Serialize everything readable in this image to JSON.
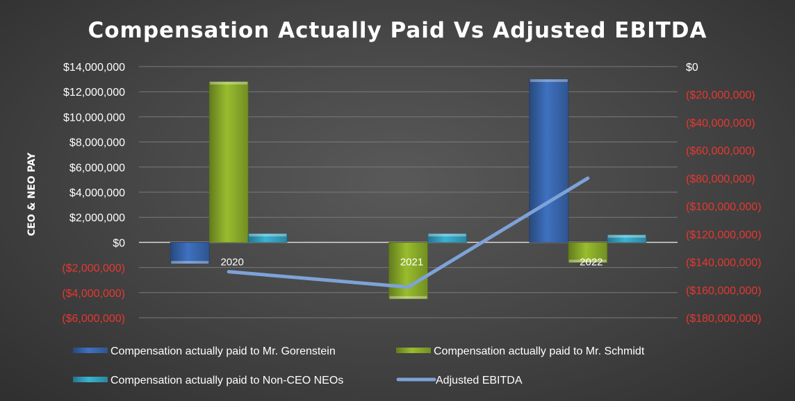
{
  "chart_data": {
    "type": "bar",
    "title": "Compensation Actually Paid Vs Adjusted EBITDA",
    "ylabel": "CEO & NEO PAY",
    "ylabel_right": "",
    "xlabel": "",
    "categories": [
      "2020",
      "2021",
      "2022"
    ],
    "series": [
      {
        "name": "Compensation actually paid to Mr. Gorenstein",
        "kind": "bar",
        "axis": "left",
        "color": "#3e71c0",
        "values": [
          -1700000,
          0,
          13000000
        ]
      },
      {
        "name": "Compensation actually paid to Mr. Schmidt",
        "kind": "bar",
        "axis": "left",
        "color": "#98bd2e",
        "values": [
          12800000,
          -4500000,
          -1600000
        ]
      },
      {
        "name": "Compensation actually paid to Non-CEO NEOs",
        "kind": "bar",
        "axis": "left",
        "color": "#39b3d3",
        "values": [
          700000,
          700000,
          600000
        ]
      },
      {
        "name": "Adjusted EBITDA",
        "kind": "line",
        "axis": "right",
        "color": "#7ea2d8",
        "values": [
          -147000000,
          -158000000,
          -80000000
        ]
      }
    ],
    "ylim": [
      -6000000,
      14000000
    ],
    "ylim_right": [
      -180000000,
      0
    ],
    "yticks_left": [
      {
        "value": 14000000,
        "label": "$14,000,000"
      },
      {
        "value": 12000000,
        "label": "$12,000,000"
      },
      {
        "value": 10000000,
        "label": "$10,000,000"
      },
      {
        "value": 8000000,
        "label": "$8,000,000"
      },
      {
        "value": 6000000,
        "label": "$6,000,000"
      },
      {
        "value": 4000000,
        "label": "$4,000,000"
      },
      {
        "value": 2000000,
        "label": "$2,000,000"
      },
      {
        "value": 0,
        "label": "$0"
      },
      {
        "value": -2000000,
        "label": "($2,000,000)"
      },
      {
        "value": -4000000,
        "label": "($4,000,000)"
      },
      {
        "value": -6000000,
        "label": "($6,000,000)"
      }
    ],
    "yticks_right": [
      {
        "value": 0,
        "label": "$0"
      },
      {
        "value": -20000000,
        "label": "($20,000,000)"
      },
      {
        "value": -40000000,
        "label": "($40,000,000)"
      },
      {
        "value": -60000000,
        "label": "($60,000,000)"
      },
      {
        "value": -80000000,
        "label": "($80,000,000)"
      },
      {
        "value": -100000000,
        "label": "($100,000,000)"
      },
      {
        "value": -120000000,
        "label": "($120,000,000)"
      },
      {
        "value": -140000000,
        "label": "($140,000,000)"
      },
      {
        "value": -160000000,
        "label": "($160,000,000)"
      },
      {
        "value": -180000000,
        "label": "($180,000,000)"
      }
    ],
    "colors": {
      "positive_tick": "#ffffff",
      "negative_tick": "#e8372f",
      "grid": "#7a7a7a",
      "zero_line": "#d9d9d9"
    },
    "grid": true,
    "legend_position": "bottom"
  }
}
